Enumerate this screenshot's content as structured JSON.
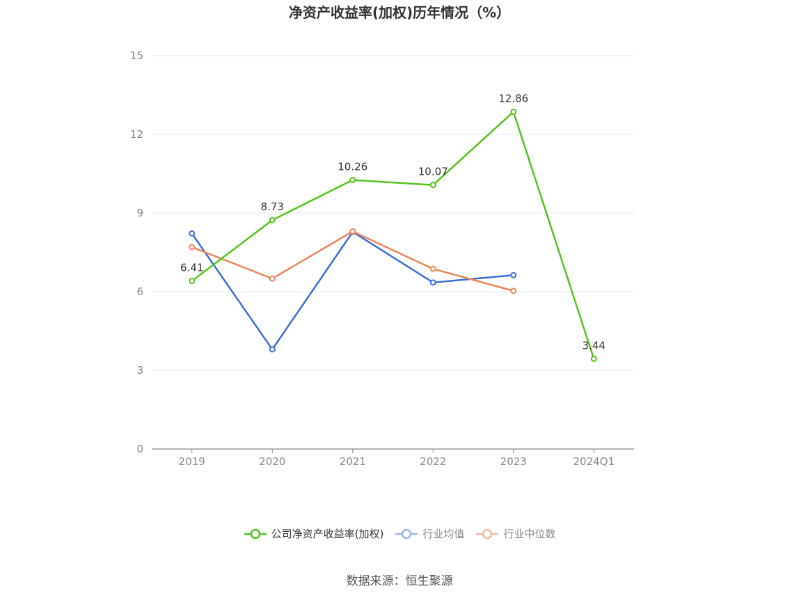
{
  "title": "净资产收益率(加权)历年情况（%）",
  "source": "数据来源：恒生聚源",
  "colors": {
    "company": "#52c41a",
    "avg": "#3a6fd8",
    "median": "#f0845a",
    "grid": "#e4e8ee",
    "axis": "#888888",
    "label": "#333333"
  },
  "chart_data": {
    "type": "line",
    "categories": [
      "2019",
      "2020",
      "2021",
      "2022",
      "2023",
      "2024Q1"
    ],
    "ylim": [
      0,
      15
    ],
    "yticks": [
      0,
      3,
      6,
      9,
      12,
      15
    ],
    "grid": true,
    "legend_position": "bottom",
    "series": [
      {
        "name": "公司净资产收益率(加权)",
        "values": [
          6.41,
          8.73,
          10.26,
          10.07,
          12.86,
          3.44
        ],
        "labels": [
          "6.41",
          "8.73",
          "10.26",
          "10.07",
          "12.86",
          "3.44"
        ],
        "color": "#52c41a"
      },
      {
        "name": "行业均值",
        "values": [
          8.22,
          3.8,
          8.28,
          6.35,
          6.63,
          null
        ],
        "color": "#3a6fd8"
      },
      {
        "name": "行业中位数",
        "values": [
          7.7,
          6.5,
          8.3,
          6.87,
          6.03,
          null
        ],
        "color": "#f0845a"
      }
    ]
  }
}
